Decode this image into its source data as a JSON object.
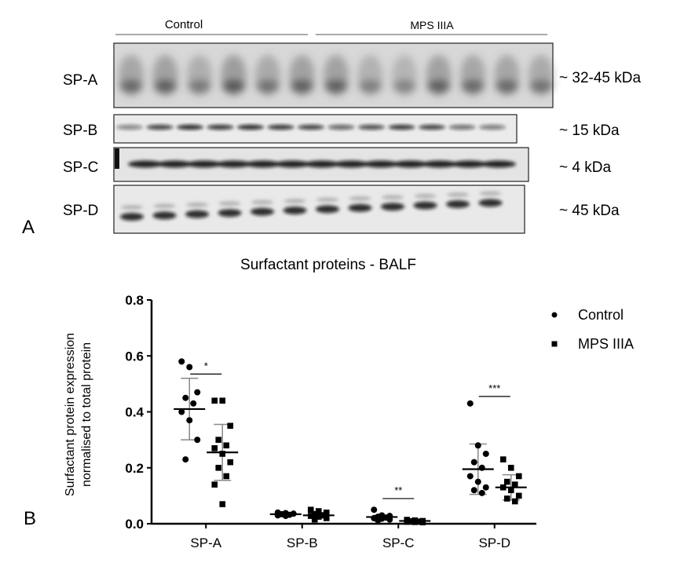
{
  "panel_a": {
    "label": "A",
    "groups": [
      "Control",
      "MPS IIIA"
    ],
    "blots": [
      {
        "name": "SP-A",
        "size": "~ 32-45 kDa"
      },
      {
        "name": "SP-B",
        "size": "~ 15 kDa"
      },
      {
        "name": "SP-C",
        "size": "~ 4 kDa"
      },
      {
        "name": "SP-D",
        "size": "~ 45 kDa"
      }
    ]
  },
  "panel_b": {
    "label": "B",
    "chart_data": {
      "type": "scatter",
      "title": "Surfactant proteins - BALF",
      "ylabel_line1": "Surfactant protein expression",
      "ylabel_line2": "normalised to total protein",
      "ylim": [
        0,
        0.8
      ],
      "yticks": [
        "0.0",
        "0.2",
        "0.4",
        "0.6",
        "0.8"
      ],
      "categories": [
        "SP-A",
        "SP-B",
        "SP-C",
        "SP-D"
      ],
      "legend": {
        "placement": "top-right"
      },
      "series": [
        {
          "name": "Control",
          "marker": "circle",
          "mean": [
            0.41,
            0.034,
            0.024,
            0.195
          ],
          "sd_upper": [
            0.52,
            0.04,
            0.03,
            0.285
          ],
          "sd_lower": [
            0.3,
            0.028,
            0.018,
            0.105
          ],
          "points": [
            [
              0.58,
              0.56,
              0.47,
              0.45,
              0.43,
              0.4,
              0.37,
              0.3,
              0.23
            ],
            [
              0.04,
              0.038,
              0.036,
              0.034,
              0.032,
              0.03,
              0.028
            ],
            [
              0.05,
              0.03,
              0.028,
              0.025,
              0.022,
              0.02,
              0.018,
              0.015,
              0.012
            ],
            [
              0.43,
              0.28,
              0.25,
              0.22,
              0.2,
              0.17,
              0.15,
              0.13,
              0.12,
              0.11
            ]
          ]
        },
        {
          "name": "MPS IIIA",
          "marker": "square",
          "mean": [
            0.255,
            0.03,
            0.01,
            0.13
          ],
          "sd_upper": [
            0.355,
            0.04,
            0.014,
            0.175
          ],
          "sd_lower": [
            0.155,
            0.02,
            0.006,
            0.085
          ],
          "points": [
            [
              0.44,
              0.44,
              0.35,
              0.3,
              0.28,
              0.27,
              0.25,
              0.22,
              0.2,
              0.17,
              0.14,
              0.07
            ],
            [
              0.05,
              0.045,
              0.04,
              0.035,
              0.03,
              0.028,
              0.025,
              0.02,
              0.015
            ],
            [
              0.014,
              0.012,
              0.01,
              0.009,
              0.008,
              0.007,
              0.006,
              0.005
            ],
            [
              0.23,
              0.2,
              0.17,
              0.15,
              0.14,
              0.13,
              0.12,
              0.1,
              0.09,
              0.08
            ]
          ]
        }
      ],
      "significance": [
        "*",
        "",
        "**",
        "***"
      ]
    }
  }
}
